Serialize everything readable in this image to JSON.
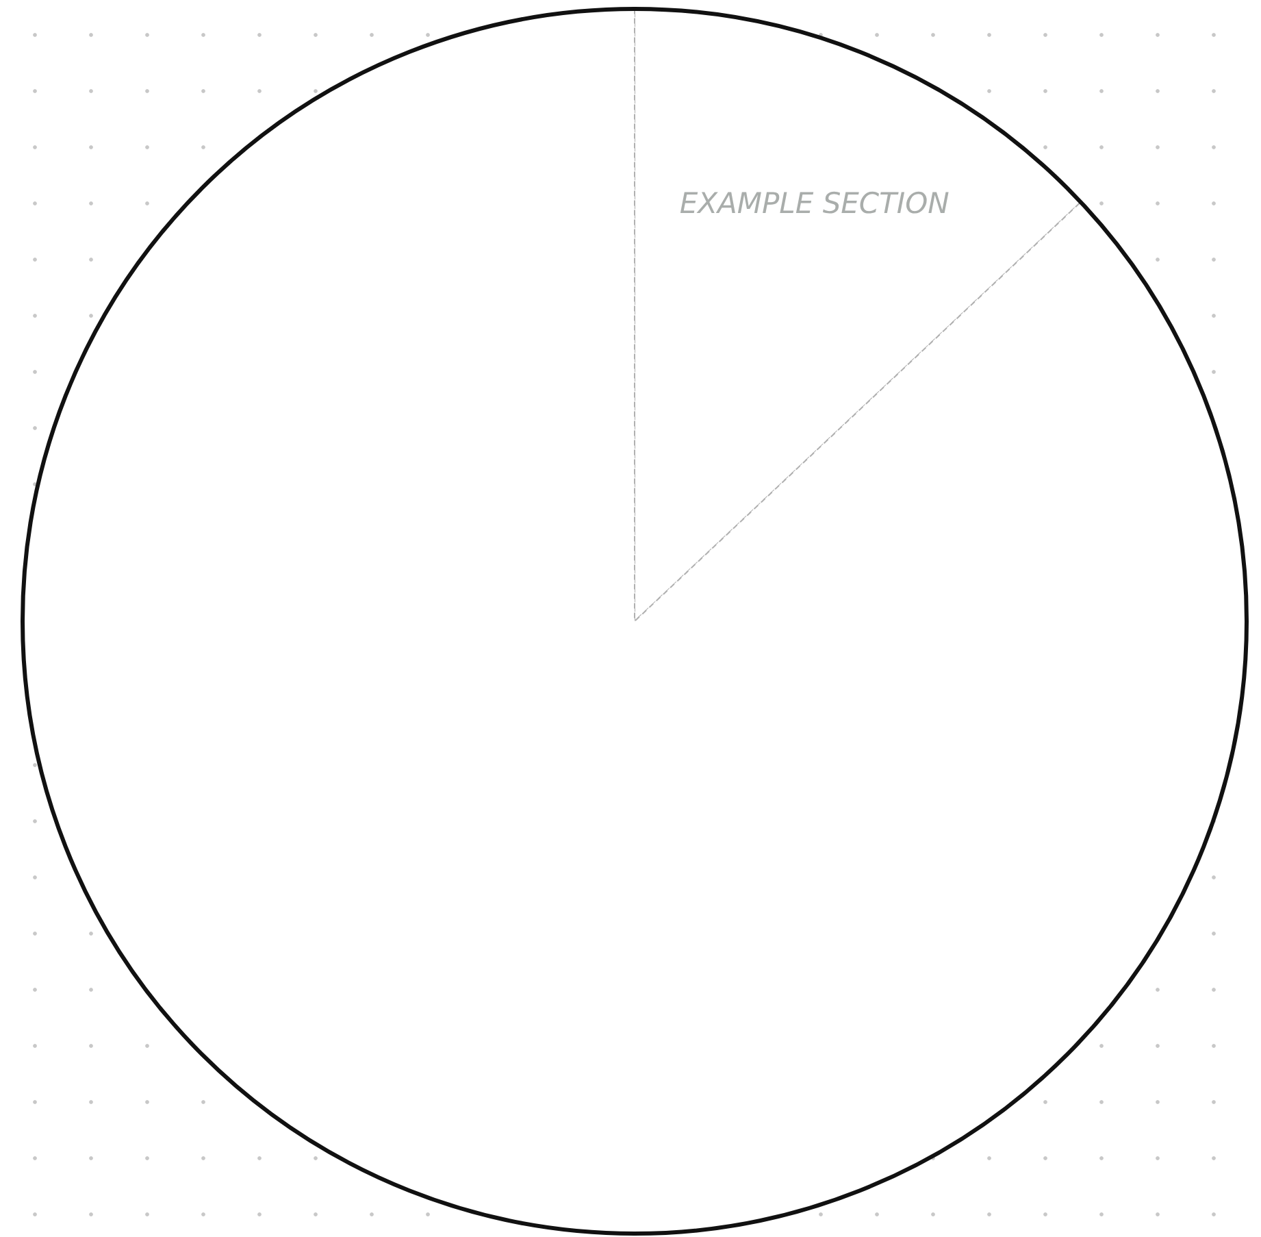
{
  "chart_data": {
    "type": "pie",
    "categories": [
      "EXAMPLE SECTION",
      null
    ],
    "values": [
      13,
      87
    ],
    "colors": [
      "#ffffff",
      "#ffffff"
    ],
    "legend": false
  }
}
